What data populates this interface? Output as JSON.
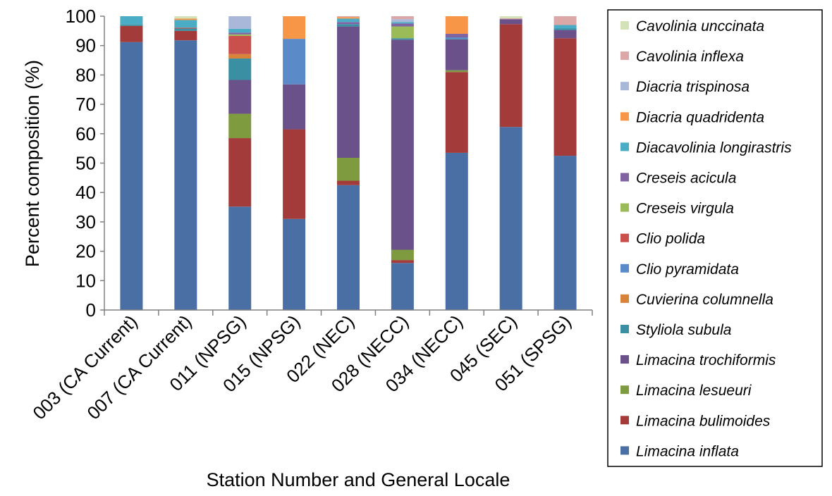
{
  "chart_data": {
    "type": "bar",
    "stacked": true,
    "title": "",
    "xlabel": "Station Number and General Locale",
    "ylabel": "Percent composition (%)",
    "ylim": [
      0,
      100
    ],
    "yticks": [
      "0",
      "10",
      "20",
      "30",
      "40",
      "50",
      "60",
      "70",
      "80",
      "90",
      "100"
    ],
    "grid": false,
    "legend_position": "right",
    "categories": [
      "003 (CA Current)",
      "007 (CA Current)",
      "011 (NPSG)",
      "015 (NPSG)",
      "022 (NEC)",
      "028 (NECC)",
      "034 (NECC)",
      "045 (SEC)",
      "051 (SPSG)"
    ],
    "series": [
      {
        "name": "Limacina inflata",
        "color": "#4a6fa5",
        "values": [
          91.2,
          91.8,
          35.2,
          31.0,
          42.5,
          16.0,
          53.5,
          62.3,
          52.5
        ]
      },
      {
        "name": "Limacina bulimoides",
        "color": "#a23b3a",
        "values": [
          5.5,
          3.2,
          23.3,
          30.5,
          1.5,
          1.0,
          27.5,
          35.0,
          40.0
        ]
      },
      {
        "name": "Limacina lesueuri",
        "color": "#7f9b40",
        "values": [
          0,
          0,
          8.3,
          0,
          7.8,
          3.5,
          0.6,
          0,
          0
        ]
      },
      {
        "name": "Limacina trochiformis",
        "color": "#6a5189",
        "values": [
          0,
          0,
          11.5,
          15.3,
          44.7,
          71.5,
          10.5,
          1.7,
          2.8
        ]
      },
      {
        "name": "Styliola subula",
        "color": "#3a8fa3",
        "values": [
          0.5,
          0.8,
          7.3,
          0,
          0.8,
          0.5,
          0.2,
          0,
          0.5
        ]
      },
      {
        "name": "Cuvierina columnella",
        "color": "#d9823a",
        "values": [
          0,
          0,
          1.5,
          0,
          0,
          0,
          0,
          0,
          0
        ]
      },
      {
        "name": "Clio pyramidata",
        "color": "#5b8ac9",
        "values": [
          0,
          0,
          0,
          15.5,
          0,
          0,
          0.5,
          0,
          0
        ]
      },
      {
        "name": "Clio polida",
        "color": "#c9504d",
        "values": [
          0,
          0.3,
          6.2,
          0,
          0,
          0,
          0,
          0,
          0
        ]
      },
      {
        "name": "Creseis virgula",
        "color": "#9bbb59",
        "values": [
          0,
          0,
          0.5,
          0,
          0,
          4.0,
          0,
          0,
          0
        ]
      },
      {
        "name": "Creseis acicula",
        "color": "#8064a2",
        "values": [
          0,
          0,
          0.6,
          0,
          0.7,
          1.0,
          1.2,
          0,
          0
        ]
      },
      {
        "name": "Diacavolinia longirastris",
        "color": "#4bacc6",
        "values": [
          2.8,
          2.6,
          1.3,
          0,
          1.2,
          0.5,
          0,
          0,
          1.2
        ]
      },
      {
        "name": "Diacria quadridenta",
        "color": "#f79646",
        "values": [
          0,
          0.5,
          0,
          7.7,
          0.5,
          0,
          6.0,
          0,
          0
        ]
      },
      {
        "name": "Diacria trispinosa",
        "color": "#a9b8d9",
        "values": [
          0,
          0,
          4.3,
          0,
          0,
          1.0,
          0,
          0,
          0
        ]
      },
      {
        "name": "Cavolinia inflexa",
        "color": "#dba8a7",
        "values": [
          0,
          0,
          0,
          0,
          0.3,
          1.0,
          0,
          0.3,
          3.0
        ]
      },
      {
        "name": "Cavolinia unccinata",
        "color": "#d3e2b7",
        "values": [
          0,
          0.8,
          0,
          0,
          0,
          0,
          0,
          0.7,
          0
        ]
      }
    ]
  }
}
